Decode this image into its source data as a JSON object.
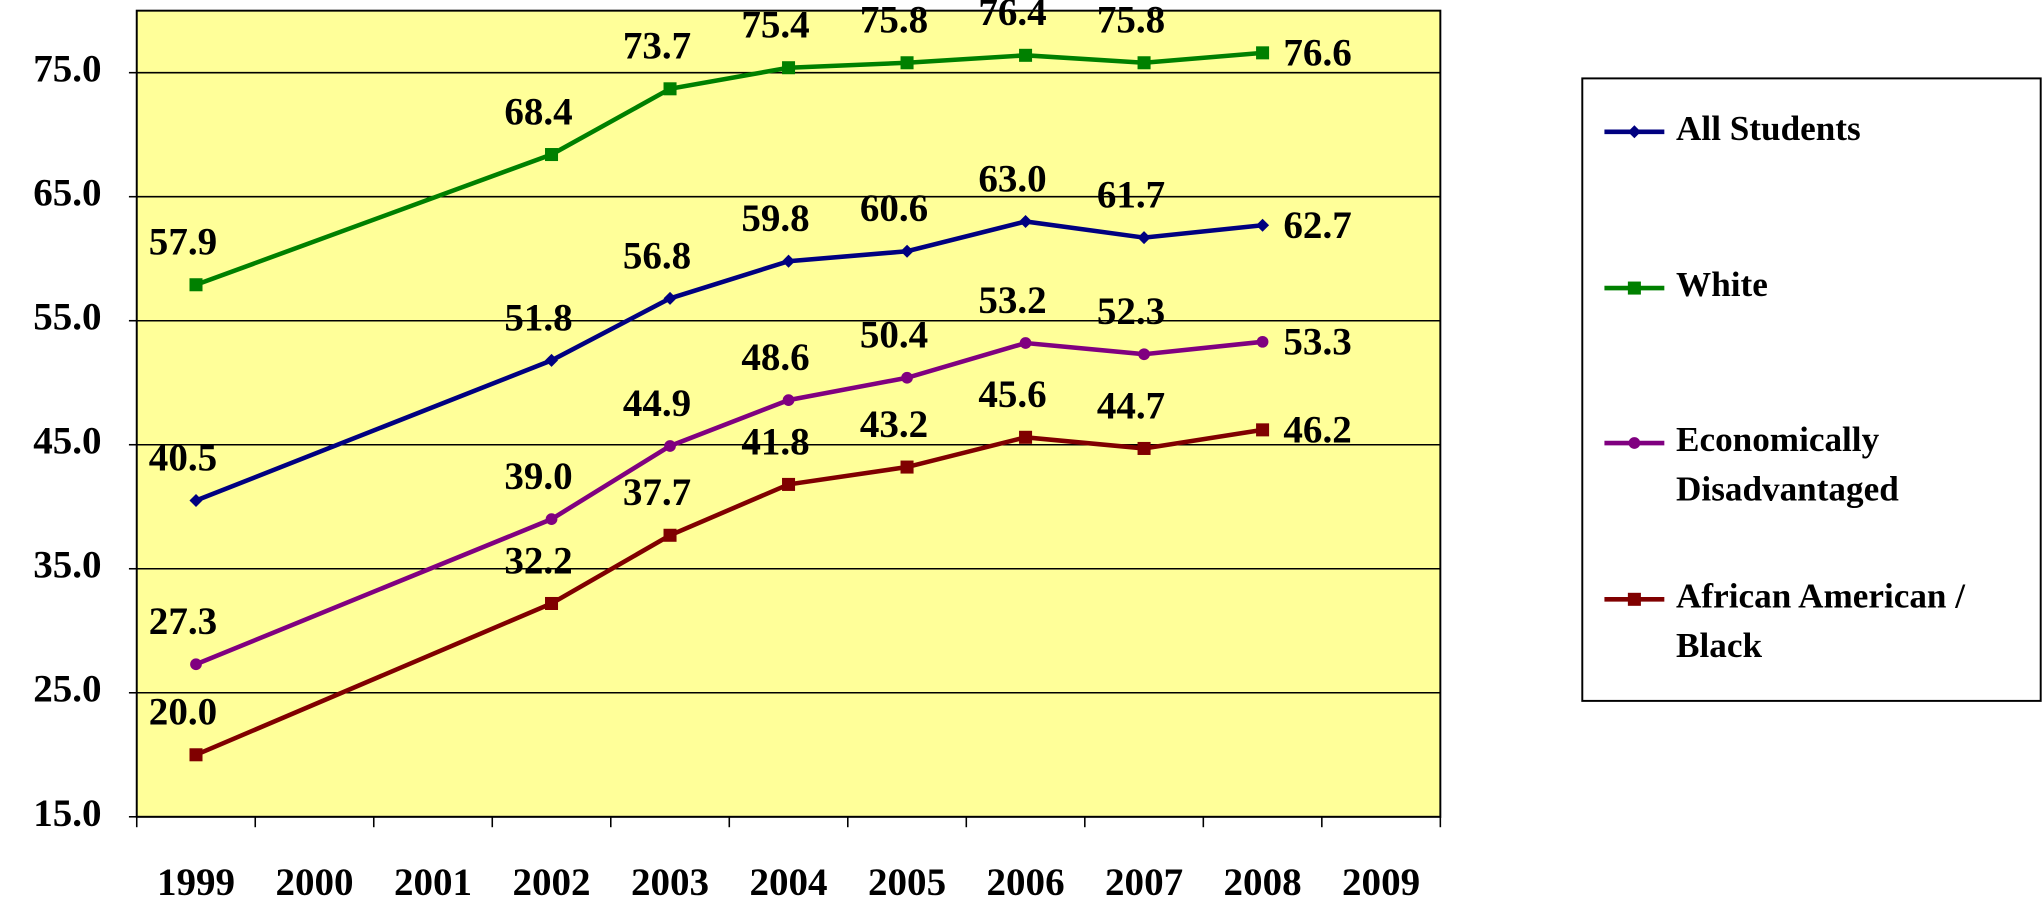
{
  "chart_data": {
    "type": "line",
    "x": [
      1999,
      2002,
      2003,
      2004,
      2005,
      2006,
      2007,
      2008
    ],
    "xlim": [
      1998.5,
      2009.5
    ],
    "xticks": [
      1999,
      2000,
      2001,
      2002,
      2003,
      2004,
      2005,
      2006,
      2007,
      2008,
      2009
    ],
    "ylim": [
      15,
      80
    ],
    "yticks": [
      {
        "value": 15,
        "label": "15.0"
      },
      {
        "value": 25,
        "label": "25.0"
      },
      {
        "value": 35,
        "label": "35.0"
      },
      {
        "value": 45,
        "label": "45.0"
      },
      {
        "value": 55,
        "label": "55.0"
      },
      {
        "value": 65,
        "label": "65.0"
      },
      {
        "value": 75,
        "label": "75.0"
      }
    ],
    "grid": true,
    "legend": "right",
    "series": [
      {
        "name": "All Students",
        "color": "#000080",
        "marker": "diamond",
        "values": [
          40.5,
          51.8,
          56.8,
          59.8,
          60.6,
          63.0,
          61.7,
          62.7
        ],
        "value_labels": [
          "40.5",
          "51.8",
          "56.8",
          "59.8",
          "60.6",
          "63.0",
          "61.7",
          "62.7"
        ]
      },
      {
        "name": "White",
        "color": "#008000",
        "marker": "square",
        "values": [
          57.9,
          68.4,
          73.7,
          75.4,
          75.8,
          76.4,
          75.8,
          76.6
        ],
        "value_labels": [
          "57.9",
          "68.4",
          "73.7",
          "75.4",
          "75.8",
          "76.4",
          "75.8",
          "76.6"
        ]
      },
      {
        "name": "Economically Disadvantaged",
        "color": "#800080",
        "marker": "circle",
        "values": [
          27.3,
          39.0,
          44.9,
          48.6,
          50.4,
          53.2,
          52.3,
          53.3
        ],
        "value_labels": [
          "27.3",
          "39.0",
          "44.9",
          "48.6",
          "50.4",
          "53.2",
          "52.3",
          "53.3"
        ]
      },
      {
        "name": "African American / Black",
        "color": "#800000",
        "marker": "square",
        "values": [
          20.0,
          32.2,
          37.7,
          41.8,
          43.2,
          45.6,
          44.7,
          46.2
        ],
        "value_labels": [
          "20.0",
          "32.2",
          "37.7",
          "41.8",
          "43.2",
          "45.6",
          "44.7",
          "46.2"
        ]
      }
    ]
  }
}
